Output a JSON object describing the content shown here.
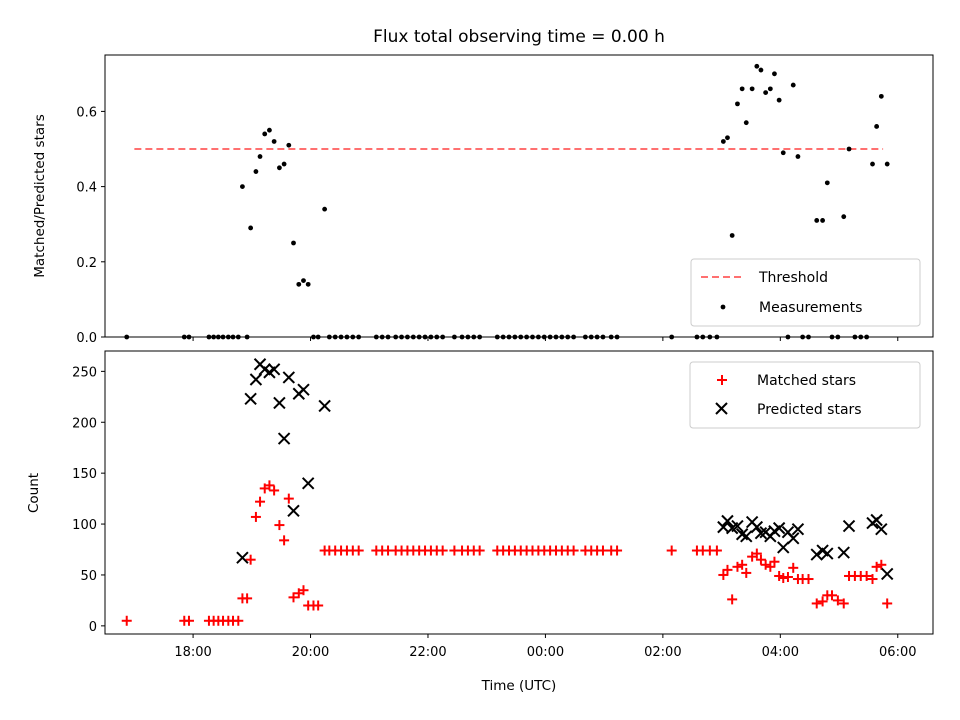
{
  "chart_data": [
    {
      "type": "scatter",
      "title": "Flux total observing time = 0.00 h",
      "xlabel": "",
      "ylabel": "Matched/Predicted stars",
      "xlim": [
        16.5,
        30.6
      ],
      "ylim": [
        0.0,
        0.75
      ],
      "yticks": [
        0.0,
        0.2,
        0.4,
        0.6
      ],
      "ytick_labels": [
        "0.0",
        "0.2",
        "0.4",
        "0.6"
      ],
      "xticks": [
        18,
        20,
        22,
        24,
        26,
        28,
        30
      ],
      "xtick_labels": [],
      "legend_position": "lower-right",
      "threshold": {
        "name": "Threshold",
        "value": 0.5,
        "x_range": [
          17.0,
          29.75
        ],
        "color": "#ff7070"
      },
      "series": [
        {
          "name": "Measurements",
          "color": "#000000",
          "marker": "dot",
          "points": [
            [
              16.87,
              0.0
            ],
            [
              17.85,
              0.0
            ],
            [
              17.93,
              0.0
            ],
            [
              18.27,
              0.0
            ],
            [
              18.35,
              0.0
            ],
            [
              18.43,
              0.0
            ],
            [
              18.51,
              0.0
            ],
            [
              18.6,
              0.0
            ],
            [
              18.68,
              0.0
            ],
            [
              18.77,
              0.0
            ],
            [
              18.84,
              0.4
            ],
            [
              18.92,
              0.0
            ],
            [
              18.98,
              0.29
            ],
            [
              19.07,
              0.44
            ],
            [
              19.14,
              0.48
            ],
            [
              19.22,
              0.54
            ],
            [
              19.3,
              0.55
            ],
            [
              19.38,
              0.52
            ],
            [
              19.47,
              0.45
            ],
            [
              19.55,
              0.46
            ],
            [
              19.63,
              0.51
            ],
            [
              19.71,
              0.25
            ],
            [
              19.8,
              0.14
            ],
            [
              19.88,
              0.15
            ],
            [
              19.96,
              0.14
            ],
            [
              20.05,
              0.0
            ],
            [
              20.13,
              0.0
            ],
            [
              20.24,
              0.34
            ],
            [
              20.32,
              0.0
            ],
            [
              20.42,
              0.0
            ],
            [
              20.52,
              0.0
            ],
            [
              20.62,
              0.0
            ],
            [
              20.72,
              0.0
            ],
            [
              20.82,
              0.0
            ],
            [
              21.12,
              0.0
            ],
            [
              21.22,
              0.0
            ],
            [
              21.32,
              0.0
            ],
            [
              21.45,
              0.0
            ],
            [
              21.55,
              0.0
            ],
            [
              21.65,
              0.0
            ],
            [
              21.75,
              0.0
            ],
            [
              21.85,
              0.0
            ],
            [
              21.95,
              0.0
            ],
            [
              22.05,
              0.0
            ],
            [
              22.15,
              0.0
            ],
            [
              22.25,
              0.0
            ],
            [
              22.45,
              0.0
            ],
            [
              22.58,
              0.0
            ],
            [
              22.68,
              0.0
            ],
            [
              22.78,
              0.0
            ],
            [
              22.88,
              0.0
            ],
            [
              23.18,
              0.0
            ],
            [
              23.28,
              0.0
            ],
            [
              23.38,
              0.0
            ],
            [
              23.48,
              0.0
            ],
            [
              23.58,
              0.0
            ],
            [
              23.68,
              0.0
            ],
            [
              23.78,
              0.0
            ],
            [
              23.88,
              0.0
            ],
            [
              23.98,
              0.0
            ],
            [
              24.08,
              0.0
            ],
            [
              24.18,
              0.0
            ],
            [
              24.28,
              0.0
            ],
            [
              24.38,
              0.0
            ],
            [
              24.48,
              0.0
            ],
            [
              24.68,
              0.0
            ],
            [
              24.78,
              0.0
            ],
            [
              24.88,
              0.0
            ],
            [
              24.98,
              0.0
            ],
            [
              25.12,
              0.0
            ],
            [
              25.22,
              0.0
            ],
            [
              26.15,
              0.0
            ],
            [
              26.58,
              0.0
            ],
            [
              26.68,
              0.0
            ],
            [
              26.8,
              0.0
            ],
            [
              26.92,
              0.0
            ],
            [
              27.03,
              0.52
            ],
            [
              27.1,
              0.53
            ],
            [
              27.18,
              0.27
            ],
            [
              27.27,
              0.62
            ],
            [
              27.35,
              0.66
            ],
            [
              27.42,
              0.57
            ],
            [
              27.52,
              0.66
            ],
            [
              27.6,
              0.72
            ],
            [
              27.67,
              0.71
            ],
            [
              27.75,
              0.65
            ],
            [
              27.83,
              0.66
            ],
            [
              27.9,
              0.7
            ],
            [
              27.98,
              0.63
            ],
            [
              28.05,
              0.49
            ],
            [
              28.13,
              0.0
            ],
            [
              28.22,
              0.67
            ],
            [
              28.3,
              0.48
            ],
            [
              28.38,
              0.0
            ],
            [
              28.48,
              0.0
            ],
            [
              28.62,
              0.31
            ],
            [
              28.72,
              0.31
            ],
            [
              28.8,
              0.41
            ],
            [
              28.88,
              0.0
            ],
            [
              28.98,
              0.0
            ],
            [
              29.08,
              0.32
            ],
            [
              29.17,
              0.5
            ],
            [
              29.27,
              0.0
            ],
            [
              29.37,
              0.0
            ],
            [
              29.47,
              0.0
            ],
            [
              29.57,
              0.46
            ],
            [
              29.64,
              0.56
            ],
            [
              29.72,
              0.64
            ],
            [
              29.82,
              0.46
            ]
          ]
        }
      ]
    },
    {
      "type": "scatter",
      "title": "",
      "xlabel": "Time (UTC)",
      "ylabel": "Count",
      "xlim": [
        16.5,
        30.6
      ],
      "ylim": [
        -8,
        270
      ],
      "yticks": [
        0,
        50,
        100,
        150,
        200,
        250
      ],
      "ytick_labels": [
        "0",
        "50",
        "100",
        "150",
        "200",
        "250"
      ],
      "xticks": [
        18,
        20,
        22,
        24,
        26,
        28,
        30
      ],
      "xtick_labels": [
        "18:00",
        "20:00",
        "22:00",
        "00:00",
        "02:00",
        "04:00",
        "06:00"
      ],
      "legend_position": "upper-right",
      "series": [
        {
          "name": "Matched stars",
          "color": "#ff0000",
          "marker": "plus",
          "points": [
            [
              16.87,
              5
            ],
            [
              17.85,
              5
            ],
            [
              17.93,
              5
            ],
            [
              18.27,
              5
            ],
            [
              18.35,
              5
            ],
            [
              18.43,
              5
            ],
            [
              18.51,
              5
            ],
            [
              18.6,
              5
            ],
            [
              18.68,
              5
            ],
            [
              18.77,
              5
            ],
            [
              18.84,
              27
            ],
            [
              18.92,
              27
            ],
            [
              18.98,
              65
            ],
            [
              19.07,
              107
            ],
            [
              19.14,
              122
            ],
            [
              19.22,
              135
            ],
            [
              19.3,
              138
            ],
            [
              19.38,
              133
            ],
            [
              19.47,
              99
            ],
            [
              19.55,
              84
            ],
            [
              19.63,
              125
            ],
            [
              19.71,
              28
            ],
            [
              19.8,
              32
            ],
            [
              19.88,
              35
            ],
            [
              19.96,
              20
            ],
            [
              20.05,
              20
            ],
            [
              20.13,
              20
            ],
            [
              20.24,
              74
            ],
            [
              20.32,
              74
            ],
            [
              20.42,
              74
            ],
            [
              20.52,
              74
            ],
            [
              20.62,
              74
            ],
            [
              20.72,
              74
            ],
            [
              20.82,
              74
            ],
            [
              21.12,
              74
            ],
            [
              21.22,
              74
            ],
            [
              21.32,
              74
            ],
            [
              21.45,
              74
            ],
            [
              21.55,
              74
            ],
            [
              21.65,
              74
            ],
            [
              21.75,
              74
            ],
            [
              21.85,
              74
            ],
            [
              21.95,
              74
            ],
            [
              22.05,
              74
            ],
            [
              22.15,
              74
            ],
            [
              22.25,
              74
            ],
            [
              22.45,
              74
            ],
            [
              22.58,
              74
            ],
            [
              22.68,
              74
            ],
            [
              22.78,
              74
            ],
            [
              22.88,
              74
            ],
            [
              23.18,
              74
            ],
            [
              23.28,
              74
            ],
            [
              23.38,
              74
            ],
            [
              23.48,
              74
            ],
            [
              23.58,
              74
            ],
            [
              23.68,
              74
            ],
            [
              23.78,
              74
            ],
            [
              23.88,
              74
            ],
            [
              23.98,
              74
            ],
            [
              24.08,
              74
            ],
            [
              24.18,
              74
            ],
            [
              24.28,
              74
            ],
            [
              24.38,
              74
            ],
            [
              24.48,
              74
            ],
            [
              24.68,
              74
            ],
            [
              24.78,
              74
            ],
            [
              24.88,
              74
            ],
            [
              24.98,
              74
            ],
            [
              25.12,
              74
            ],
            [
              25.22,
              74
            ],
            [
              26.15,
              74
            ],
            [
              26.58,
              74
            ],
            [
              26.68,
              74
            ],
            [
              26.8,
              74
            ],
            [
              26.92,
              74
            ],
            [
              27.03,
              50
            ],
            [
              27.1,
              55
            ],
            [
              27.18,
              26
            ],
            [
              27.27,
              58
            ],
            [
              27.35,
              60
            ],
            [
              27.42,
              52
            ],
            [
              27.52,
              68
            ],
            [
              27.6,
              71
            ],
            [
              27.67,
              65
            ],
            [
              27.75,
              60
            ],
            [
              27.83,
              58
            ],
            [
              27.9,
              63
            ],
            [
              27.98,
              49
            ],
            [
              28.05,
              47
            ],
            [
              28.13,
              48
            ],
            [
              28.22,
              57
            ],
            [
              28.3,
              46
            ],
            [
              28.38,
              46
            ],
            [
              28.48,
              46
            ],
            [
              28.62,
              22
            ],
            [
              28.72,
              24
            ],
            [
              28.8,
              30
            ],
            [
              28.88,
              30
            ],
            [
              28.98,
              25
            ],
            [
              29.08,
              22
            ],
            [
              29.17,
              49
            ],
            [
              29.27,
              49
            ],
            [
              29.37,
              49
            ],
            [
              29.47,
              49
            ],
            [
              29.57,
              46
            ],
            [
              29.64,
              58
            ],
            [
              29.72,
              60
            ],
            [
              29.82,
              22
            ]
          ]
        },
        {
          "name": "Predicted stars",
          "color": "#000000",
          "marker": "x",
          "points": [
            [
              18.84,
              67
            ],
            [
              18.98,
              223
            ],
            [
              19.07,
              242
            ],
            [
              19.14,
              257
            ],
            [
              19.22,
              252
            ],
            [
              19.3,
              249
            ],
            [
              19.38,
              252
            ],
            [
              19.47,
              219
            ],
            [
              19.55,
              184
            ],
            [
              19.63,
              244
            ],
            [
              19.71,
              113
            ],
            [
              19.8,
              228
            ],
            [
              19.88,
              232
            ],
            [
              19.96,
              140
            ],
            [
              20.24,
              216
            ],
            [
              27.03,
              97
            ],
            [
              27.1,
              103
            ],
            [
              27.18,
              96
            ],
            [
              27.27,
              98
            ],
            [
              27.35,
              90
            ],
            [
              27.42,
              88
            ],
            [
              27.52,
              102
            ],
            [
              27.6,
              97
            ],
            [
              27.67,
              91
            ],
            [
              27.75,
              92
            ],
            [
              27.83,
              88
            ],
            [
              27.9,
              93
            ],
            [
              27.98,
              96
            ],
            [
              28.05,
              77
            ],
            [
              28.13,
              92
            ],
            [
              28.22,
              86
            ],
            [
              28.3,
              95
            ],
            [
              28.62,
              70
            ],
            [
              28.72,
              74
            ],
            [
              28.8,
              71
            ],
            [
              29.08,
              72
            ],
            [
              29.17,
              98
            ],
            [
              29.57,
              101
            ],
            [
              29.64,
              104
            ],
            [
              29.72,
              95
            ],
            [
              29.82,
              51
            ]
          ]
        }
      ]
    }
  ]
}
